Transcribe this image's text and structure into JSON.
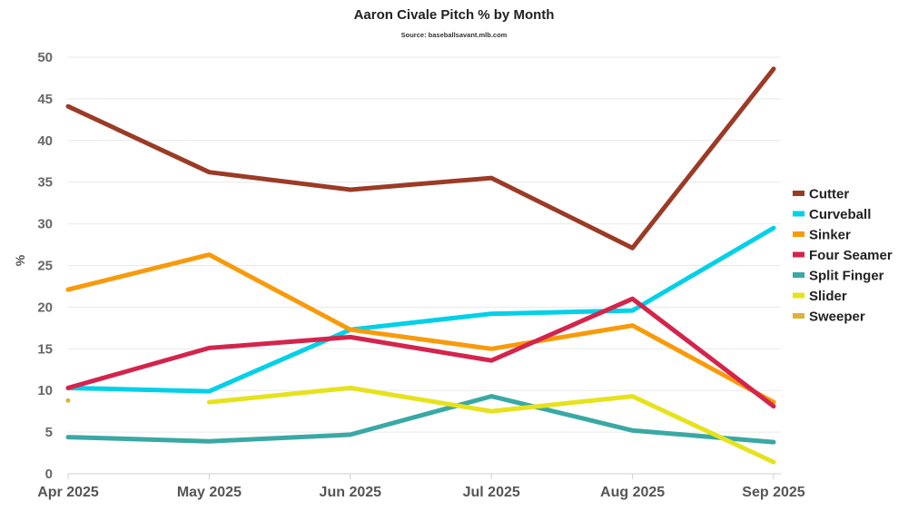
{
  "chart_data": {
    "type": "line",
    "title": "Aaron Civale Pitch % by Month",
    "subtitle": "Source: baseballsavant.mlb.com",
    "xlabel": "",
    "ylabel": "%",
    "ylim": [
      0,
      50
    ],
    "yticks": [
      0,
      5,
      10,
      15,
      20,
      25,
      30,
      35,
      40,
      45,
      50
    ],
    "grid": true,
    "legend_position": "right",
    "categories": [
      "Apr 2025",
      "May 2025",
      "Jun 2025",
      "Jul 2025",
      "Aug 2025",
      "Sep 2025"
    ],
    "series": [
      {
        "name": "Cutter",
        "color": "#9b3b26",
        "values": [
          44.1,
          36.2,
          34.1,
          35.5,
          27.1,
          48.6
        ]
      },
      {
        "name": "Curveball",
        "color": "#00d0e8",
        "values": [
          10.3,
          9.9,
          17.3,
          19.2,
          19.6,
          29.5
        ]
      },
      {
        "name": "Sinker",
        "color": "#f99a0a",
        "values": [
          22.1,
          26.3,
          17.3,
          15.0,
          17.8,
          8.6
        ]
      },
      {
        "name": "Four Seamer",
        "color": "#d4244c",
        "values": [
          10.3,
          15.1,
          16.4,
          13.6,
          21.0,
          8.1
        ]
      },
      {
        "name": "Split Finger",
        "color": "#3aa8a4",
        "values": [
          4.4,
          3.9,
          4.7,
          9.3,
          5.2,
          3.8
        ]
      },
      {
        "name": "Slider",
        "color": "#e6e21c",
        "values": [
          null,
          8.6,
          10.3,
          7.5,
          9.3,
          1.4
        ]
      },
      {
        "name": "Sweeper",
        "color": "#dcb334",
        "values": [
          8.8,
          null,
          null,
          null,
          null,
          null
        ]
      }
    ]
  }
}
